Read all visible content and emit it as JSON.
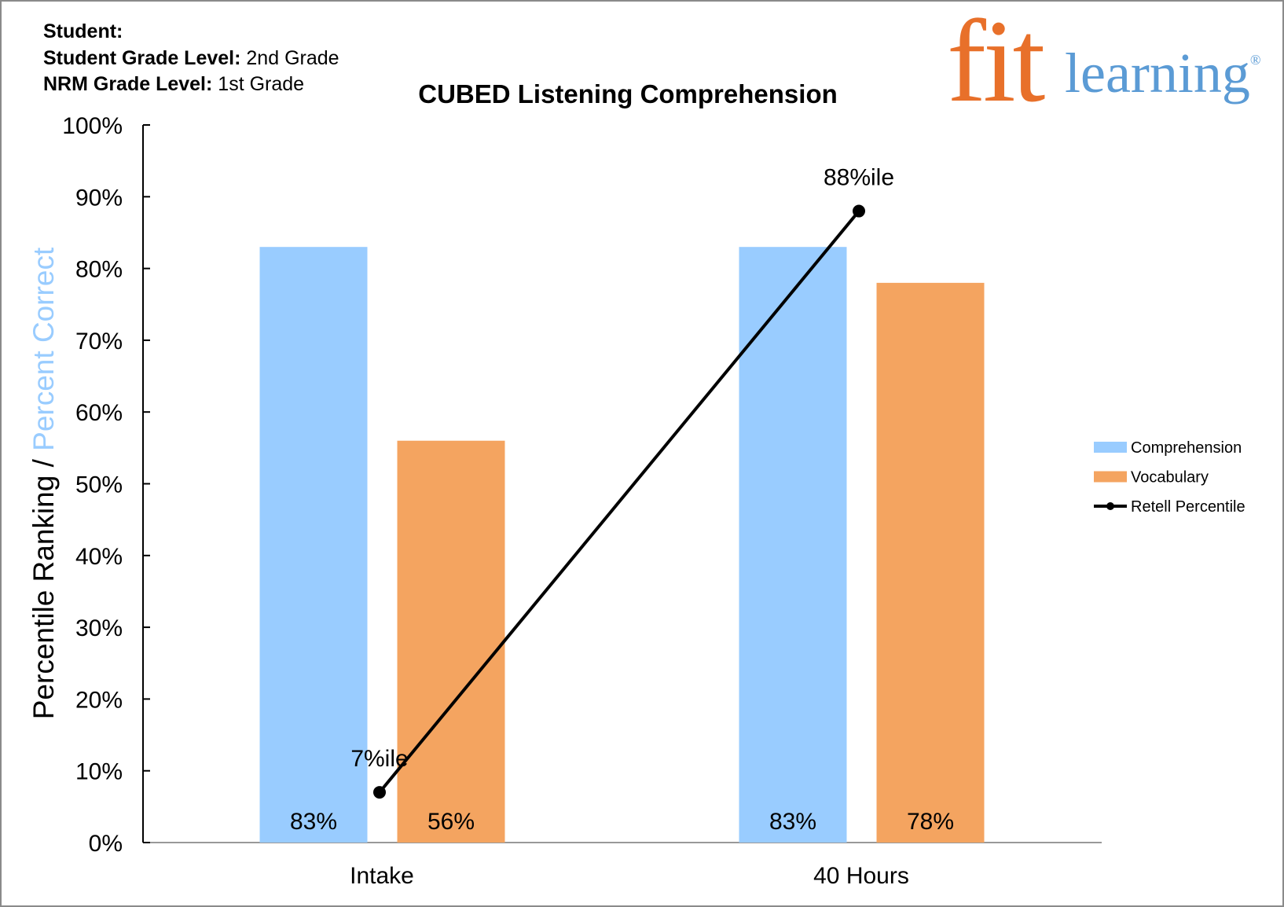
{
  "header": {
    "student_label": "Student:",
    "student_value": "",
    "grade_label": "Student Grade Level:",
    "grade_value": "2nd Grade",
    "nrm_label": "NRM Grade Level:",
    "nrm_value": "1st Grade"
  },
  "logo": {
    "fit": "fit",
    "learning": "learning",
    "reg": "®"
  },
  "chart_data": {
    "type": "bar",
    "title": "CUBED Listening Comprehension",
    "ylabel_part1": "Percentile Ranking / ",
    "ylabel_part2": "Percent Correct",
    "xlabel": "",
    "ylim": [
      0,
      100
    ],
    "yticks": [
      "0%",
      "10%",
      "20%",
      "30%",
      "40%",
      "50%",
      "60%",
      "70%",
      "80%",
      "90%",
      "100%"
    ],
    "categories": [
      "Intake",
      "40 Hours"
    ],
    "series": [
      {
        "name": "Comprehension",
        "kind": "bar",
        "color": "#99CCFF",
        "values": [
          83,
          83
        ],
        "labels": [
          "83%",
          "83%"
        ]
      },
      {
        "name": "Vocabulary",
        "kind": "bar",
        "color": "#F4A460",
        "values": [
          56,
          78
        ],
        "labels": [
          "56%",
          "78%"
        ]
      },
      {
        "name": "Retell Percentile",
        "kind": "line",
        "color": "#000000",
        "values": [
          7,
          88
        ],
        "labels": [
          "7%ile",
          "88%ile"
        ]
      }
    ],
    "legend_position": "right"
  }
}
